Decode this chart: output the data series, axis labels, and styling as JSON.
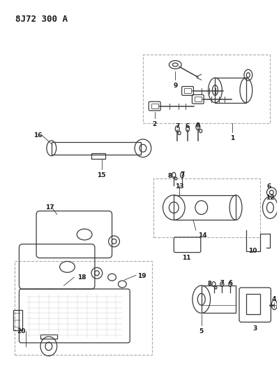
{
  "title": "8J72 300 A",
  "bg_color": "#ffffff",
  "lc": "#3a3a3a",
  "tc": "#1a1a1a",
  "gc": "#aaaaaa",
  "fig_w": 4.0,
  "fig_h": 5.33,
  "dpi": 100
}
